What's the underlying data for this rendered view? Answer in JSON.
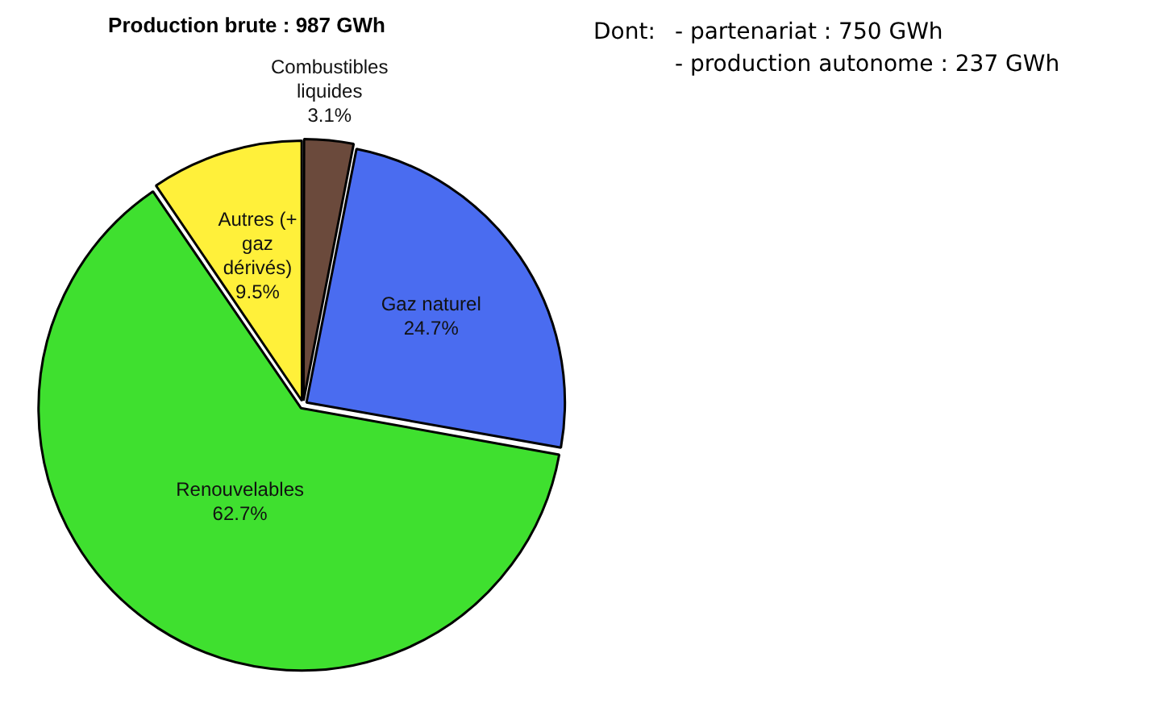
{
  "chart_data": {
    "type": "pie",
    "title": "Production brute : 987 GWh",
    "categories": [
      "Combustibles liquides",
      "Gaz naturel",
      "Renouvelables",
      "Autres (+ gaz dérivés)"
    ],
    "values": [
      3.1,
      24.7,
      62.7,
      9.5
    ],
    "colors": [
      "#6b4a3c",
      "#4a6cf0",
      "#3fe02f",
      "#fff03a"
    ],
    "value_labels": [
      "3.1%",
      "24.7%",
      "62.7%",
      "9.5%"
    ],
    "annotations": [
      "Dont:",
      "- partenariat : 750 GWh",
      "- production autonome : 237 GWh"
    ]
  }
}
